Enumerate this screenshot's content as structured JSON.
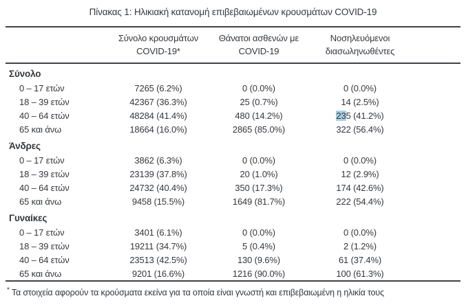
{
  "title": "Πίνακας 1: Ηλικιακή κατανομή επιβεβαιωμένων κρουσμάτων COVID-19",
  "colors": {
    "text": "#34373c",
    "rule": "#3e4146",
    "selection_highlight": "#a9d0e4"
  },
  "table": {
    "columns": [
      {
        "lines": [
          "Σύνολο κρουσμάτων",
          "COVID-19*"
        ]
      },
      {
        "lines": [
          "Θάνατοι ασθενών με",
          "COVID-19"
        ]
      },
      {
        "lines": [
          "Νοσηλευόμενοι",
          "διασωληνωθέντες"
        ]
      }
    ],
    "sections": [
      {
        "label": "Σύνολο",
        "rows": [
          {
            "age": "0 – 17 ετών",
            "cases": "7265 (6.2%)",
            "deaths": "0 (0.0%)",
            "intubated": "0 (0.0%)"
          },
          {
            "age": "18 – 39 ετών",
            "cases": "42367 (36.3%)",
            "deaths": "25 (0.7%)",
            "intubated": "14 (2.5%)"
          },
          {
            "age": "40 – 64 ετών",
            "cases": "48284 (41.4%)",
            "deaths": "480 (14.2%)",
            "intubated": "235 (41.2%)",
            "highlight": {
              "cell": "intubated",
              "text": "23"
            }
          },
          {
            "age": "65 και άνω",
            "cases": "18664 (16.0%)",
            "deaths": "2865 (85.0%)",
            "intubated": "322 (56.4%)"
          }
        ]
      },
      {
        "label": "Άνδρες",
        "rows": [
          {
            "age": "0 – 17 ετών",
            "cases": "3862 (6.3%)",
            "deaths": "0 (0.0%)",
            "intubated": "0 (0.0%)"
          },
          {
            "age": "18 – 39 ετών",
            "cases": "23139 (37.8%)",
            "deaths": "20 (1.0%)",
            "intubated": "12 (2.9%)"
          },
          {
            "age": "40 – 64 ετών",
            "cases": "24732 (40.4%)",
            "deaths": "350 (17.3%)",
            "intubated": "174 (42.6%)"
          },
          {
            "age": "65 και άνω",
            "cases": "9458 (15.5%)",
            "deaths": "1649 (81.7%)",
            "intubated": "222 (54.4%)"
          }
        ]
      },
      {
        "label": "Γυναίκες",
        "rows": [
          {
            "age": "0 – 17 ετών",
            "cases": "3401 (6.1%)",
            "deaths": "0 (0.0%)",
            "intubated": "0 (0.0%)"
          },
          {
            "age": "18 – 39 ετών",
            "cases": "19211 (34.7%)",
            "deaths": "5 (0.4%)",
            "intubated": "2 (1.2%)"
          },
          {
            "age": "40 – 64 ετών",
            "cases": "23513 (42.5%)",
            "deaths": "130 (9.6%)",
            "intubated": "61 (37.4%)"
          },
          {
            "age": "65 και άνω",
            "cases": "9201 (16.6%)",
            "deaths": "1216 (90.0%)",
            "intubated": "100 (61.3%)"
          }
        ]
      }
    ]
  },
  "footnote": {
    "marker": "*",
    "text": "Τα στοιχεία αφορούν τα κρούσματα εκείνα για τα οποία είναι γνωστή και επιβεβαιωμένη η ηλικία τους"
  }
}
